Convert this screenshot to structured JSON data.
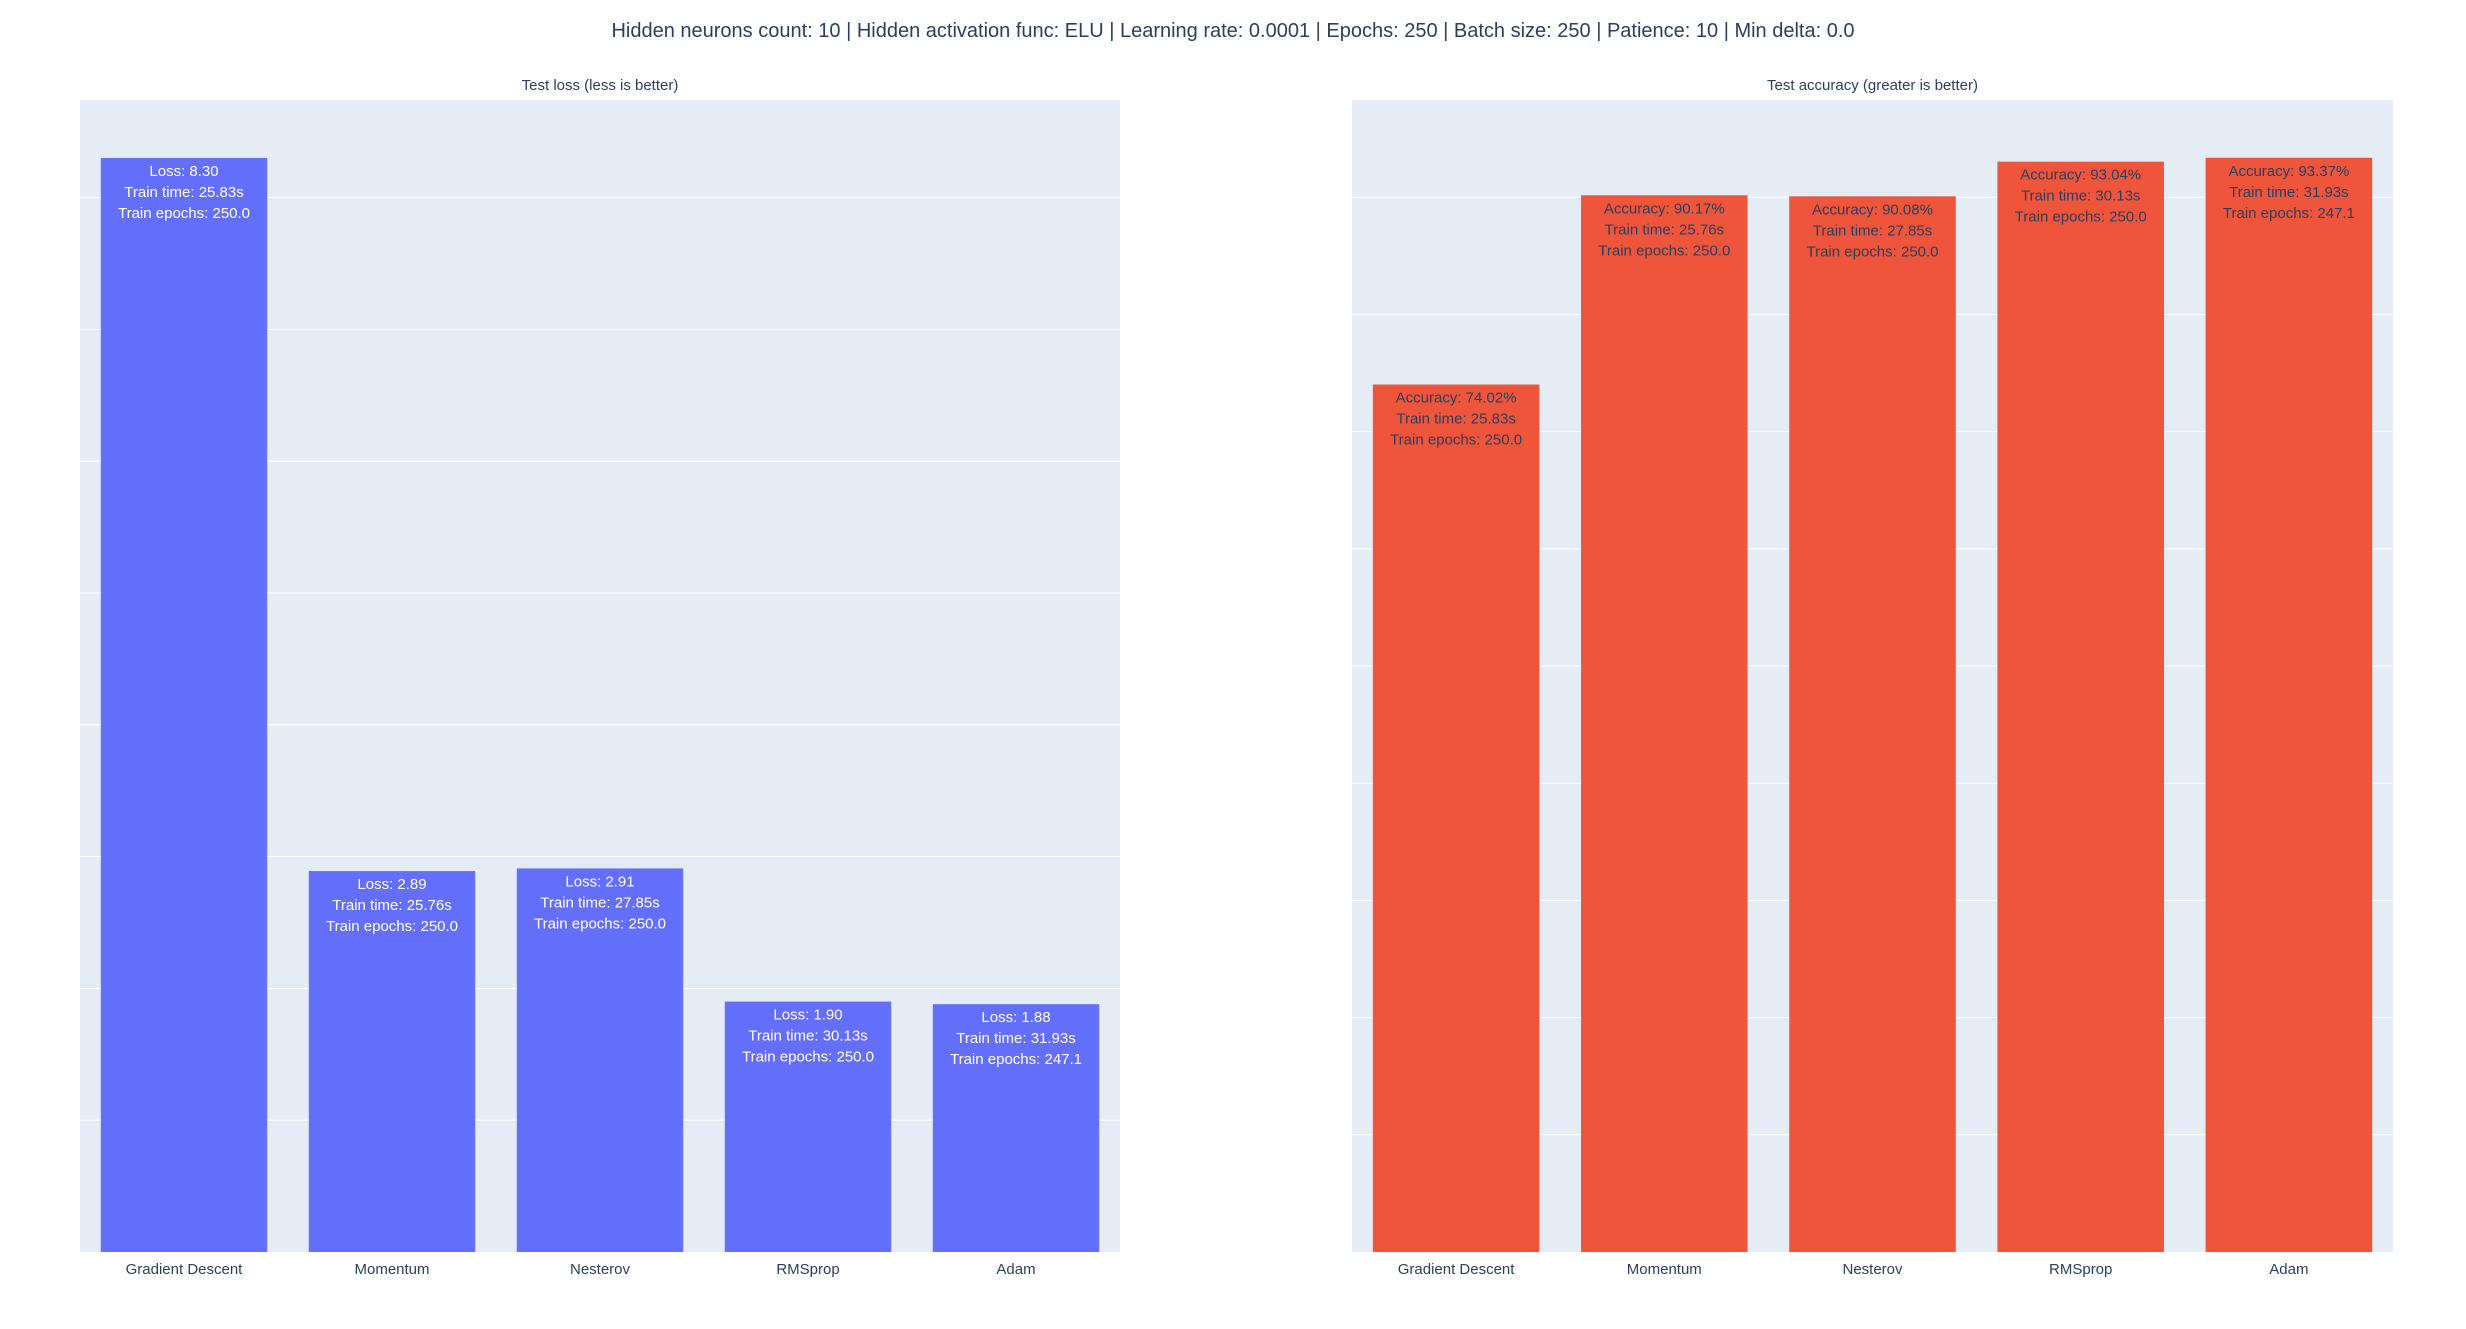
{
  "title": "Hidden neurons count: 10 | Hidden activation func: ELU | Learning rate: 0.0001 | Epochs: 250 | Batch size: 250 | Patience: 10 | Min delta: 0.0",
  "colors": {
    "plot_bg": "#E5ECF6",
    "grid": "#ffffff",
    "loss_bar": "#636EFA",
    "accuracy_bar": "#EF553B"
  },
  "chart_data": [
    {
      "type": "bar",
      "title": "Test loss (less is better)",
      "categories": [
        "Gradient Descent",
        "Momentum",
        "Nesterov",
        "RMSprop",
        "Adam"
      ],
      "values": [
        8.3,
        2.89,
        2.91,
        1.9,
        1.88
      ],
      "ylim": [
        0,
        8.74
      ],
      "grid": true,
      "bar_color": "#636EFA",
      "label_color": "#ffffff",
      "data_labels": [
        [
          "Loss: 8.30",
          "Train time: 25.83s",
          "Train epochs: 250.0"
        ],
        [
          "Loss: 2.89",
          "Train time: 25.76s",
          "Train epochs: 250.0"
        ],
        [
          "Loss: 2.91",
          "Train time: 27.85s",
          "Train epochs: 250.0"
        ],
        [
          "Loss: 1.90",
          "Train time: 30.13s",
          "Train epochs: 250.0"
        ],
        [
          "Loss: 1.88",
          "Train time: 31.93s",
          "Train epochs: 247.1"
        ]
      ]
    },
    {
      "type": "bar",
      "title": "Test accuracy (greater is better)",
      "categories": [
        "Gradient Descent",
        "Momentum",
        "Nesterov",
        "RMSprop",
        "Adam"
      ],
      "values": [
        74.02,
        90.17,
        90.08,
        93.04,
        93.37
      ],
      "ylim": [
        0,
        98.3
      ],
      "grid": true,
      "bar_color": "#EF553B",
      "label_color": "#2a3f5f",
      "data_labels": [
        [
          "Accuracy: 74.02%",
          "Train time: 25.83s",
          "Train epochs: 250.0"
        ],
        [
          "Accuracy: 90.17%",
          "Train time: 25.76s",
          "Train epochs: 250.0"
        ],
        [
          "Accuracy: 90.08%",
          "Train time: 27.85s",
          "Train epochs: 250.0"
        ],
        [
          "Accuracy: 93.04%",
          "Train time: 30.13s",
          "Train epochs: 250.0"
        ],
        [
          "Accuracy: 93.37%",
          "Train time: 31.93s",
          "Train epochs: 247.1"
        ]
      ]
    }
  ]
}
